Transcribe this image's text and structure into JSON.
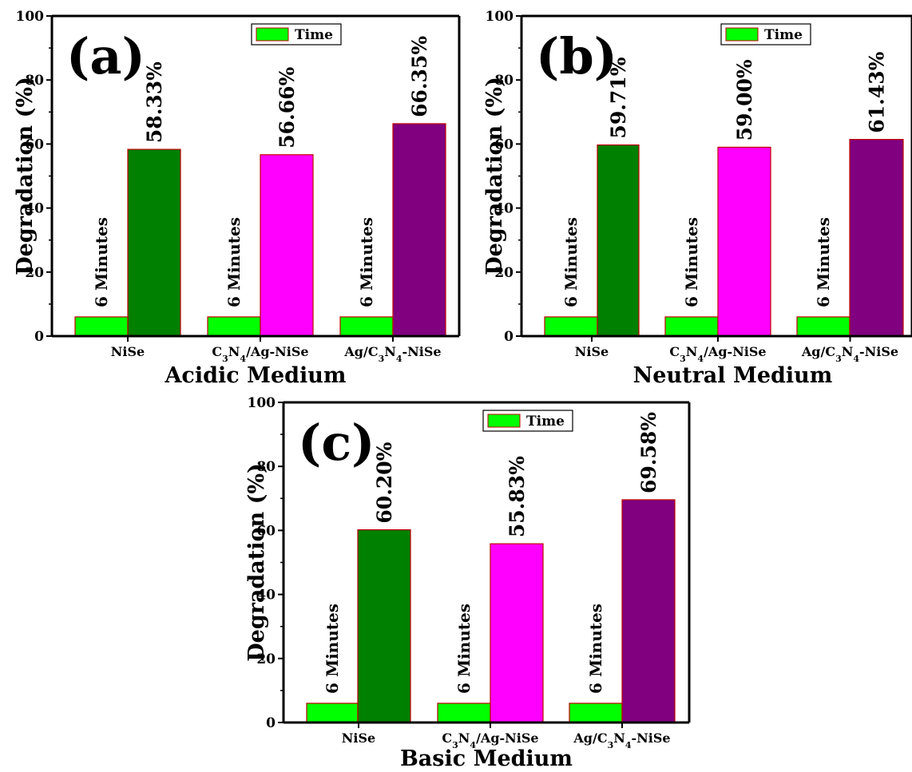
{
  "chart_data": [
    {
      "type": "bar",
      "panel_label": "(a)",
      "categories": [
        "NiSe",
        "C3N4/Ag-NiSe",
        "Ag/C3N4-NiSe"
      ],
      "category_labels": [
        [
          {
            "t": "NiSe"
          }
        ],
        [
          {
            "t": "C"
          },
          {
            "t": "3",
            "sub": true
          },
          {
            "t": "N"
          },
          {
            "t": "4",
            "sub": true
          },
          {
            "t": "/Ag-NiSe"
          }
        ],
        [
          {
            "t": "Ag/C"
          },
          {
            "t": "3",
            "sub": true
          },
          {
            "t": "N"
          },
          {
            "t": "4",
            "sub": true
          },
          {
            "t": "-NiSe"
          }
        ]
      ],
      "series": [
        {
          "name": "Time",
          "values": [
            6,
            6,
            6
          ],
          "labels": [
            "6 Minutes",
            "6 Minutes",
            "6 Minutes"
          ]
        },
        {
          "values": [
            58.33,
            56.66,
            66.35
          ],
          "labels": [
            "58.33%",
            "56.66%",
            "66.35%"
          ]
        }
      ],
      "bar_colors": [
        "#008000",
        "#ff00ff",
        "#800080"
      ],
      "time_color": "#00ff00",
      "xlabel": "Acidic Medium",
      "ylabel": "Degradation (%)",
      "ylim": [
        0,
        100
      ],
      "yticks": [
        0,
        20,
        40,
        60,
        80,
        100
      ],
      "legend_position": "top-center",
      "grid": false
    },
    {
      "type": "bar",
      "panel_label": "(b)",
      "categories": [
        "NiSe",
        "C3N4/Ag-NiSe",
        "Ag/C3N4-NiSe"
      ],
      "category_labels": [
        [
          {
            "t": "NiSe"
          }
        ],
        [
          {
            "t": "C"
          },
          {
            "t": "3",
            "sub": true
          },
          {
            "t": "N"
          },
          {
            "t": "4",
            "sub": true
          },
          {
            "t": "/Ag-NiSe"
          }
        ],
        [
          {
            "t": "Ag/C"
          },
          {
            "t": "3",
            "sub": true
          },
          {
            "t": "N"
          },
          {
            "t": "4",
            "sub": true
          },
          {
            "t": "-NiSe"
          }
        ]
      ],
      "series": [
        {
          "name": "Time",
          "values": [
            6,
            6,
            6
          ],
          "labels": [
            "6 Minutes",
            "6 Minutes",
            "6 Minutes"
          ]
        },
        {
          "values": [
            59.71,
            59.0,
            61.43
          ],
          "labels": [
            "59.71%",
            "59.00%",
            "61.43%"
          ]
        }
      ],
      "bar_colors": [
        "#008000",
        "#ff00ff",
        "#800080"
      ],
      "time_color": "#00ff00",
      "xlabel": "Neutral Medium",
      "ylabel": "Degradation (%)",
      "ylim": [
        0,
        100
      ],
      "yticks": [
        0,
        20,
        40,
        60,
        80,
        100
      ],
      "legend_position": "top-center",
      "grid": false
    },
    {
      "type": "bar",
      "panel_label": "(c)",
      "categories": [
        "NiSe",
        "C3N4/Ag-NiSe",
        "Ag/C3N4-NiSe"
      ],
      "category_labels": [
        [
          {
            "t": "NiSe"
          }
        ],
        [
          {
            "t": "C"
          },
          {
            "t": "3",
            "sub": true
          },
          {
            "t": "N"
          },
          {
            "t": "4",
            "sub": true
          },
          {
            "t": "/Ag-NiSe"
          }
        ],
        [
          {
            "t": "Ag/C"
          },
          {
            "t": "3",
            "sub": true
          },
          {
            "t": "N"
          },
          {
            "t": "4",
            "sub": true
          },
          {
            "t": "-NiSe"
          }
        ]
      ],
      "series": [
        {
          "name": "Time",
          "values": [
            6,
            6,
            6
          ],
          "labels": [
            "6 Minutes",
            "6 Minutes",
            "6 Minutes"
          ]
        },
        {
          "values": [
            60.2,
            55.83,
            69.58
          ],
          "labels": [
            "60.20%",
            "55.83%",
            "69.58%"
          ]
        }
      ],
      "bar_colors": [
        "#008000",
        "#ff00ff",
        "#800080"
      ],
      "time_color": "#00ff00",
      "xlabel": "Basic Medium",
      "ylabel": "Degradation (%)",
      "ylim": [
        0,
        100
      ],
      "yticks": [
        0,
        20,
        40,
        60,
        80,
        100
      ],
      "legend_position": "top-center",
      "grid": false
    }
  ]
}
